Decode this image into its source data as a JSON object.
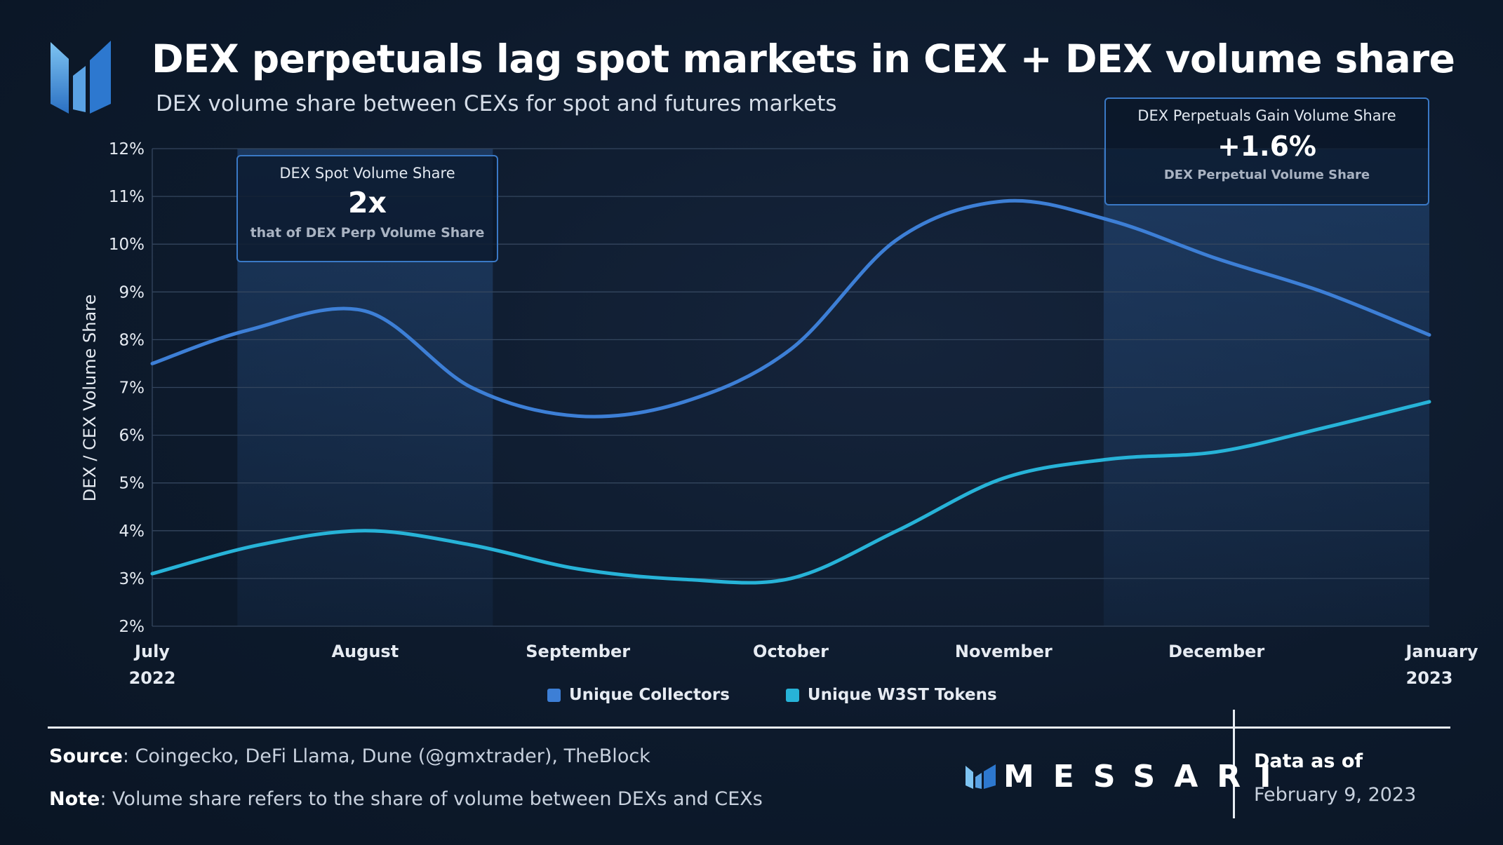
{
  "header": {
    "title": "DEX perpetuals lag spot markets in CEX + DEX volume share",
    "subtitle": "DEX volume share between CEXs for spot and futures markets"
  },
  "callouts": {
    "left": {
      "heading": "DEX Spot Volume Share",
      "value": "2x",
      "caption": "that of DEX Perp Volume Share"
    },
    "right": {
      "heading": "DEX Perpetuals Gain Volume Share",
      "value": "+1.6%",
      "caption": "DEX Perpetual Volume Share"
    }
  },
  "chart_data": {
    "type": "line",
    "ylabel": "DEX / CEX Volume Share",
    "xlabel": "",
    "ylim": [
      2,
      12
    ],
    "y_ticks": [
      "2%",
      "3%",
      "4%",
      "5%",
      "6%",
      "7%",
      "8%",
      "9%",
      "10%",
      "11%",
      "12%"
    ],
    "x_ticks": [
      {
        "label": "July",
        "sub": "2022"
      },
      {
        "label": "August",
        "sub": ""
      },
      {
        "label": "September",
        "sub": ""
      },
      {
        "label": "October",
        "sub": ""
      },
      {
        "label": "November",
        "sub": ""
      },
      {
        "label": "December",
        "sub": ""
      },
      {
        "label": "January",
        "sub": "2023"
      }
    ],
    "grid": true,
    "legend_position": "bottom",
    "highlight_regions": [
      [
        0.4,
        1.6
      ],
      [
        4.47,
        6.0
      ]
    ],
    "series": [
      {
        "name": "Unique Collectors",
        "color": "#3d7fd6",
        "x": [
          0,
          0.45,
          1.0,
          1.5,
          2.0,
          2.5,
          3.0,
          3.5,
          4.0,
          4.5,
          5.0,
          5.5,
          6.0
        ],
        "values": [
          7.5,
          8.2,
          8.6,
          7.0,
          6.4,
          6.7,
          7.8,
          10.1,
          10.9,
          10.5,
          9.7,
          9.0,
          8.1
        ]
      },
      {
        "name": "Unique W3ST Tokens",
        "color": "#27b3d8",
        "x": [
          0,
          0.5,
          1.0,
          1.5,
          2.0,
          2.5,
          3.0,
          3.5,
          4.0,
          4.5,
          5.0,
          5.5,
          6.0
        ],
        "values": [
          3.1,
          3.7,
          4.0,
          3.7,
          3.2,
          2.98,
          3.0,
          4.0,
          5.1,
          5.5,
          5.65,
          6.15,
          6.7
        ]
      }
    ]
  },
  "footer": {
    "source_label": "Source",
    "source_text": ": Coingecko, DeFi Llama, Dune (@gmxtrader), TheBlock",
    "note_label": "Note",
    "note_text": ": Volume share refers to the share of volume between DEXs and CEXs",
    "brand": "MESSARI",
    "data_as_of_label": "Data as of",
    "data_as_of_date": "February 9, 2023"
  }
}
